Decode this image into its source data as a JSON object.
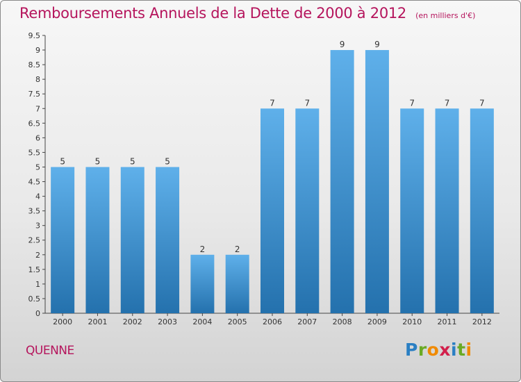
{
  "header": {
    "title": "Remboursements Annuels de la Dette de 2000 à 2012",
    "subtitle": "(en milliers d'€)"
  },
  "commune": "QUENNE",
  "logo": {
    "text": "Proxiti",
    "letters": [
      {
        "ch": "P",
        "color": "#2a7fc3"
      },
      {
        "ch": "r",
        "color": "#6aaa24"
      },
      {
        "ch": "o",
        "color": "#f08a00"
      },
      {
        "ch": "x",
        "color": "#d21f4b"
      },
      {
        "ch": "i",
        "color": "#2a7fc3"
      },
      {
        "ch": "t",
        "color": "#6aaa24"
      },
      {
        "ch": "i",
        "color": "#f08a00"
      }
    ]
  },
  "chart_data": {
    "type": "bar",
    "categories": [
      "2000",
      "2001",
      "2002",
      "2003",
      "2004",
      "2005",
      "2006",
      "2007",
      "2008",
      "2009",
      "2010",
      "2011",
      "2012"
    ],
    "values": [
      5,
      5,
      5,
      5,
      2,
      2,
      7,
      7,
      9,
      9,
      7,
      7,
      7
    ],
    "data_labels": [
      "5",
      "5",
      "5",
      "5",
      "2",
      "2",
      "7",
      "7",
      "9",
      "9",
      "7",
      "7",
      "7"
    ],
    "ylim": [
      0,
      9.5
    ],
    "yticks": [
      0,
      0.5,
      1,
      1.5,
      2,
      2.5,
      3,
      3.5,
      4,
      4.5,
      5,
      5.5,
      6,
      6.5,
      7,
      7.5,
      8,
      8.5,
      9,
      9.5
    ],
    "ytick_labels": [
      "0",
      "0.5",
      "1",
      "1.5",
      "2",
      "2.5",
      "3",
      "3.5",
      "4",
      "4.5",
      "5",
      "5.5",
      "6",
      "6.5",
      "7",
      "7.5",
      "8",
      "8.5",
      "9",
      "9.5"
    ],
    "grid": false,
    "colors": {
      "bar_top": "#5fb0ea",
      "bar_bottom": "#2471ad",
      "axis": "#444444",
      "text": "#333333"
    }
  }
}
